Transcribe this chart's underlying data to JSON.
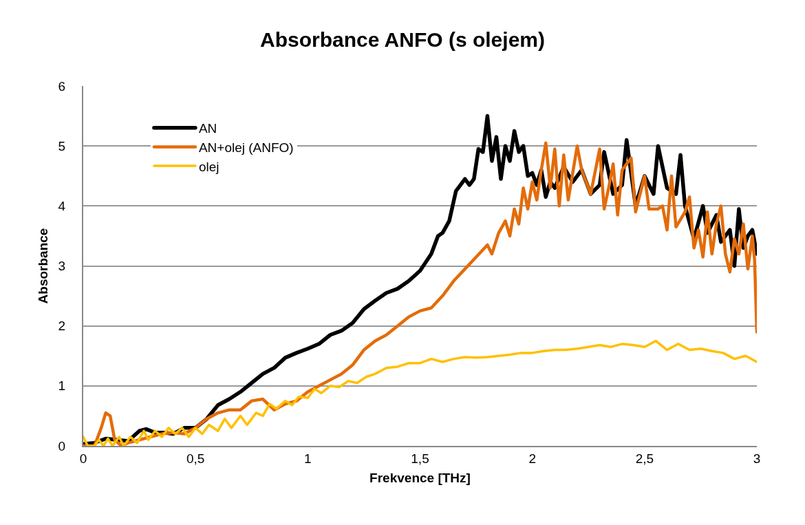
{
  "chart_data": {
    "type": "line",
    "title": "Absorbance ANFO (s olejem)",
    "xlabel": "Frekvence [THz]",
    "ylabel": "Absorbance",
    "xlim": [
      0,
      3
    ],
    "xticks": [
      0,
      {
        "value": 0.5,
        "label": "0,5"
      },
      1,
      {
        "value": 1.5,
        "label": "1,5"
      },
      2,
      {
        "value": 2.5,
        "label": "2,5"
      },
      3
    ],
    "ylim": [
      0,
      6
    ],
    "yticks": [
      0,
      1,
      2,
      3,
      4,
      5,
      6
    ],
    "grid": "y",
    "legend": "top left",
    "marker": "none",
    "line_style": "solid",
    "series": [
      {
        "name": "AN",
        "color": "#000000",
        "x": [
          0,
          0.05,
          0.1,
          0.15,
          0.2,
          0.25,
          0.28,
          0.32,
          0.36,
          0.4,
          0.45,
          0.5,
          0.55,
          0.6,
          0.65,
          0.7,
          0.75,
          0.8,
          0.85,
          0.9,
          0.95,
          1.0,
          1.05,
          1.1,
          1.15,
          1.2,
          1.25,
          1.3,
          1.35,
          1.4,
          1.45,
          1.5,
          1.55,
          1.58,
          1.6,
          1.63,
          1.66,
          1.7,
          1.72,
          1.74,
          1.76,
          1.78,
          1.8,
          1.82,
          1.84,
          1.86,
          1.88,
          1.9,
          1.92,
          1.94,
          1.96,
          1.98,
          2.0,
          2.02,
          2.04,
          2.06,
          2.08,
          2.1,
          2.14,
          2.18,
          2.22,
          2.26,
          2.3,
          2.32,
          2.36,
          2.4,
          2.42,
          2.46,
          2.5,
          2.54,
          2.56,
          2.6,
          2.64,
          2.66,
          2.68,
          2.72,
          2.76,
          2.78,
          2.82,
          2.84,
          2.88,
          2.9,
          2.92,
          2.94,
          2.96,
          2.98,
          3.0
        ],
        "values": [
          0.03,
          0.05,
          0.12,
          0.1,
          0.08,
          0.25,
          0.28,
          0.22,
          0.22,
          0.2,
          0.3,
          0.3,
          0.45,
          0.68,
          0.78,
          0.9,
          1.05,
          1.2,
          1.3,
          1.47,
          1.55,
          1.62,
          1.7,
          1.85,
          1.92,
          2.05,
          2.28,
          2.42,
          2.55,
          2.62,
          2.75,
          2.92,
          3.2,
          3.5,
          3.55,
          3.75,
          4.25,
          4.45,
          4.35,
          4.45,
          4.95,
          4.9,
          5.5,
          4.75,
          5.15,
          4.45,
          5.0,
          4.75,
          5.25,
          4.9,
          5.0,
          4.5,
          4.55,
          4.35,
          4.6,
          4.15,
          4.4,
          4.3,
          4.65,
          4.4,
          4.6,
          4.2,
          4.35,
          4.9,
          4.2,
          4.35,
          5.1,
          4.0,
          4.5,
          4.2,
          5.0,
          4.3,
          4.2,
          4.85,
          4.0,
          3.45,
          4.0,
          3.55,
          3.85,
          3.4,
          3.6,
          3.0,
          3.95,
          3.3,
          3.5,
          3.6,
          3.2
        ]
      },
      {
        "name": "AN+olej (ANFO)",
        "color": "#e36c0a",
        "x": [
          0,
          0.05,
          0.08,
          0.1,
          0.12,
          0.14,
          0.17,
          0.2,
          0.25,
          0.3,
          0.35,
          0.4,
          0.45,
          0.5,
          0.55,
          0.6,
          0.65,
          0.7,
          0.75,
          0.8,
          0.85,
          0.9,
          0.95,
          1.0,
          1.05,
          1.1,
          1.15,
          1.2,
          1.25,
          1.3,
          1.35,
          1.4,
          1.45,
          1.5,
          1.55,
          1.6,
          1.65,
          1.7,
          1.75,
          1.8,
          1.82,
          1.85,
          1.88,
          1.9,
          1.92,
          1.94,
          1.96,
          1.98,
          2.0,
          2.02,
          2.04,
          2.06,
          2.08,
          2.1,
          2.12,
          2.14,
          2.16,
          2.2,
          2.22,
          2.26,
          2.3,
          2.32,
          2.34,
          2.36,
          2.38,
          2.4,
          2.44,
          2.46,
          2.5,
          2.52,
          2.56,
          2.58,
          2.6,
          2.62,
          2.64,
          2.68,
          2.7,
          2.72,
          2.74,
          2.76,
          2.78,
          2.8,
          2.82,
          2.84,
          2.86,
          2.88,
          2.9,
          2.92,
          2.94,
          2.96,
          2.98,
          2.99,
          3.0
        ],
        "values": [
          0.0,
          0.0,
          0.3,
          0.55,
          0.5,
          0.1,
          0.0,
          0.05,
          0.1,
          0.15,
          0.2,
          0.22,
          0.2,
          0.3,
          0.45,
          0.55,
          0.6,
          0.6,
          0.75,
          0.78,
          0.6,
          0.7,
          0.75,
          0.9,
          1.0,
          1.1,
          1.2,
          1.35,
          1.6,
          1.75,
          1.85,
          2.0,
          2.15,
          2.25,
          2.3,
          2.5,
          2.75,
          2.95,
          3.15,
          3.35,
          3.2,
          3.55,
          3.75,
          3.5,
          3.95,
          3.7,
          4.3,
          3.95,
          4.4,
          4.1,
          4.6,
          5.05,
          4.3,
          4.95,
          4.0,
          4.85,
          4.1,
          5.0,
          4.6,
          4.2,
          4.95,
          3.95,
          4.3,
          4.7,
          3.85,
          4.6,
          4.8,
          3.9,
          4.5,
          3.95,
          3.95,
          4.0,
          3.6,
          4.5,
          3.65,
          3.9,
          4.15,
          3.3,
          3.6,
          3.15,
          3.9,
          3.2,
          3.7,
          4.0,
          3.2,
          2.9,
          3.45,
          3.2,
          3.7,
          2.95,
          3.5,
          3.1,
          1.9
        ]
      },
      {
        "name": "olej",
        "color": "#ffc000",
        "x": [
          0,
          0.02,
          0.05,
          0.07,
          0.09,
          0.11,
          0.13,
          0.16,
          0.18,
          0.21,
          0.24,
          0.27,
          0.29,
          0.32,
          0.35,
          0.38,
          0.41,
          0.44,
          0.47,
          0.5,
          0.53,
          0.56,
          0.6,
          0.63,
          0.66,
          0.7,
          0.73,
          0.77,
          0.8,
          0.83,
          0.86,
          0.9,
          0.93,
          0.96,
          1.0,
          1.03,
          1.06,
          1.1,
          1.14,
          1.18,
          1.22,
          1.26,
          1.3,
          1.35,
          1.4,
          1.45,
          1.5,
          1.55,
          1.6,
          1.65,
          1.7,
          1.75,
          1.8,
          1.85,
          1.9,
          1.95,
          2.0,
          2.05,
          2.1,
          2.15,
          2.2,
          2.25,
          2.3,
          2.35,
          2.4,
          2.45,
          2.5,
          2.55,
          2.6,
          2.65,
          2.7,
          2.75,
          2.8,
          2.85,
          2.9,
          2.95,
          3.0
        ],
        "values": [
          0.15,
          0.0,
          0.0,
          0.1,
          0.0,
          0.12,
          0.0,
          0.15,
          0.0,
          0.15,
          0.05,
          0.25,
          0.1,
          0.25,
          0.15,
          0.3,
          0.2,
          0.3,
          0.15,
          0.3,
          0.2,
          0.35,
          0.25,
          0.45,
          0.3,
          0.5,
          0.35,
          0.55,
          0.5,
          0.7,
          0.62,
          0.75,
          0.68,
          0.82,
          0.8,
          0.95,
          0.88,
          1.0,
          0.98,
          1.08,
          1.05,
          1.15,
          1.2,
          1.3,
          1.32,
          1.38,
          1.38,
          1.45,
          1.4,
          1.45,
          1.48,
          1.47,
          1.48,
          1.5,
          1.52,
          1.55,
          1.55,
          1.58,
          1.6,
          1.6,
          1.62,
          1.65,
          1.68,
          1.65,
          1.7,
          1.68,
          1.65,
          1.75,
          1.6,
          1.7,
          1.6,
          1.62,
          1.58,
          1.55,
          1.45,
          1.5,
          1.4
        ]
      }
    ]
  }
}
